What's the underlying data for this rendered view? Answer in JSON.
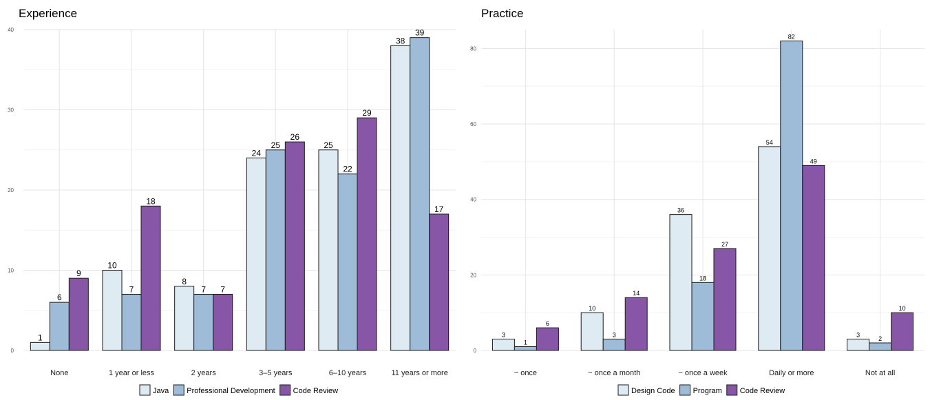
{
  "chart_data": [
    {
      "type": "bar",
      "title": "Experience",
      "xlabel": "",
      "ylabel": "",
      "ylim": [
        0,
        40
      ],
      "yticks": [
        0,
        10,
        20,
        30,
        40
      ],
      "grid": true,
      "legend_position": "bottom",
      "categories": [
        "None",
        "1 year or less",
        "2 years",
        "3–5 years",
        "6–10 years",
        "11 years or more"
      ],
      "series": [
        {
          "name": "Java",
          "color": "#deebf3",
          "values": [
            1,
            10,
            8,
            24,
            25,
            38
          ]
        },
        {
          "name": "Professional Development",
          "color": "#9ebbd8",
          "values": [
            6,
            7,
            7,
            25,
            22,
            39
          ]
        },
        {
          "name": "Code Review",
          "color": "#8856a7",
          "values": [
            9,
            18,
            7,
            26,
            29,
            17
          ]
        }
      ]
    },
    {
      "type": "bar",
      "title": "Practice",
      "xlabel": "",
      "ylabel": "",
      "ylim": [
        0,
        85
      ],
      "yticks": [
        0,
        20,
        40,
        60,
        80
      ],
      "grid": true,
      "legend_position": "bottom",
      "categories": [
        "~ once",
        "~ once a month",
        "~ once a week",
        "Daily or more",
        "Not at all"
      ],
      "series": [
        {
          "name": "Design Code",
          "color": "#deebf3",
          "values": [
            3,
            10,
            36,
            54,
            3
          ]
        },
        {
          "name": "Program",
          "color": "#9ebbd8",
          "values": [
            1,
            3,
            18,
            82,
            2
          ]
        },
        {
          "name": "Code Review",
          "color": "#8856a7",
          "values": [
            6,
            14,
            27,
            49,
            10
          ]
        }
      ]
    }
  ]
}
